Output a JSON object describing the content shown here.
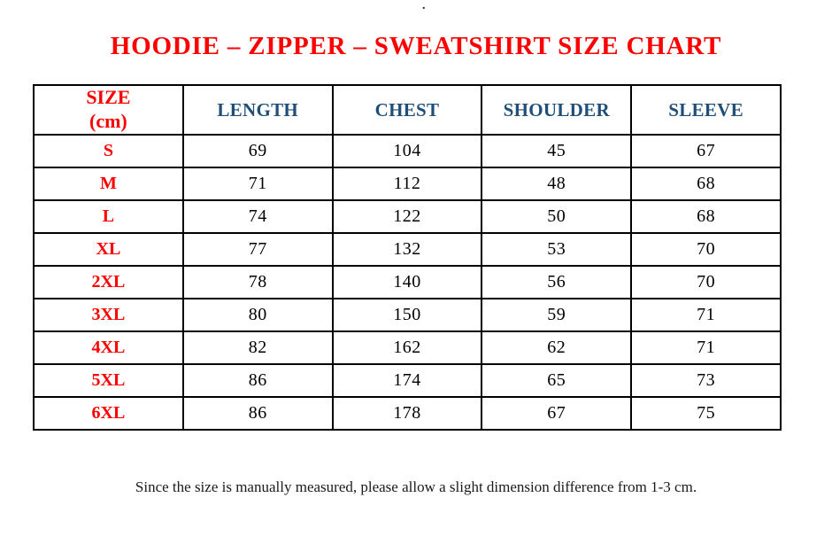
{
  "page": {
    "top_dot": "."
  },
  "title": "HOODIE – ZIPPER – SWEATSHIRT SIZE CHART",
  "table": {
    "size_header": {
      "line1": "SIZE",
      "line2": "(cm)"
    },
    "columns": [
      "LENGTH",
      "CHEST",
      "SHOULDER",
      "SLEEVE"
    ],
    "rows": [
      {
        "size": "S",
        "values": [
          "69",
          "104",
          "45",
          "67"
        ]
      },
      {
        "size": "M",
        "values": [
          "71",
          "112",
          "48",
          "68"
        ]
      },
      {
        "size": "L",
        "values": [
          "74",
          "122",
          "50",
          "68"
        ]
      },
      {
        "size": "XL",
        "values": [
          "77",
          "132",
          "53",
          "70"
        ]
      },
      {
        "size": "2XL",
        "values": [
          "78",
          "140",
          "56",
          "70"
        ]
      },
      {
        "size": "3XL",
        "values": [
          "80",
          "150",
          "59",
          "71"
        ]
      },
      {
        "size": "4XL",
        "values": [
          "82",
          "162",
          "62",
          "71"
        ]
      },
      {
        "size": "5XL",
        "values": [
          "86",
          "174",
          "65",
          "73"
        ]
      },
      {
        "size": "6XL",
        "values": [
          "86",
          "178",
          "67",
          "75"
        ]
      }
    ]
  },
  "footer": {
    "note": "Since the size is manually measured, please allow a slight dimension difference from 1-3 cm."
  },
  "colors": {
    "accent_red": "#fe0000",
    "header_blue": "#1f4e79",
    "border": "#000000",
    "text": "#000000",
    "background": "#ffffff"
  }
}
